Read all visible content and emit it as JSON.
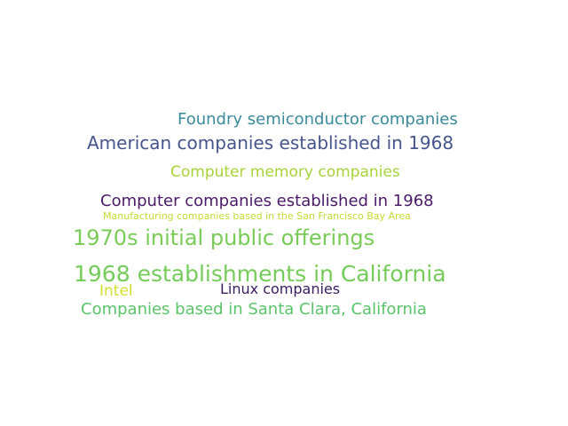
{
  "word_cloud": {
    "words": [
      {
        "id": "w1",
        "text": "Foundry semiconductor companies",
        "color": "#3b8a9c"
      },
      {
        "id": "w2",
        "text": "American companies established in 1968",
        "color": "#46558e"
      },
      {
        "id": "w3",
        "text": "Computer memory companies",
        "color": "#a6d43a"
      },
      {
        "id": "w4",
        "text": "Computer companies established in 1968",
        "color": "#4a1a68"
      },
      {
        "id": "w5",
        "text": "Manufacturing companies based in the San Francisco Bay Area",
        "color": "#c3dc34"
      },
      {
        "id": "w6",
        "text": "1970s initial public offerings",
        "color": "#7acc58"
      },
      {
        "id": "w7",
        "text": "1968 establishments in California",
        "color": "#75cc5a"
      },
      {
        "id": "w8",
        "text": "Linux companies",
        "color": "#3a1c62"
      },
      {
        "id": "w9",
        "text": "Intel",
        "color": "#d4df30"
      },
      {
        "id": "w10",
        "text": "Companies based in Santa Clara, California",
        "color": "#5cc46a"
      }
    ]
  }
}
